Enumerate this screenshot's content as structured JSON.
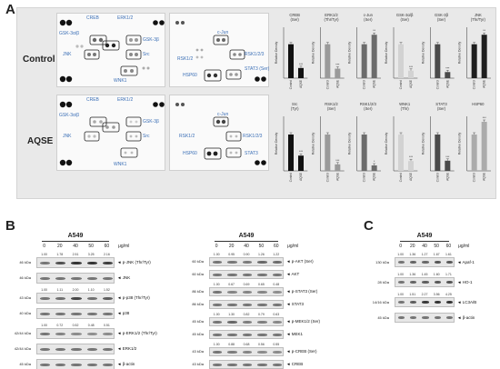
{
  "panel_a": {
    "letter": "A",
    "rows": [
      {
        "label": "Control",
        "left_array": {
          "labels": [
            "CREB",
            "ERK1/2",
            "GSK-3α/β",
            "GSK-3β",
            "JNK",
            "Src",
            "WNK1"
          ]
        },
        "right_array": {
          "labels": [
            "c-Jun",
            "RSK1/2/3",
            "RSK1/2",
            "STAT3 (Ser)",
            "HSP60"
          ]
        }
      },
      {
        "label": "AQSE",
        "left_array": {
          "labels": [
            "CREB",
            "ERK1/2",
            "GSK-3α/β",
            "GSK-3β",
            "JNK",
            "Src",
            "WNK1"
          ]
        },
        "right_array": {
          "labels": [
            "c-Jun",
            "RSK1/2",
            "RSK1/2/3",
            "HSP60",
            "STAT3"
          ]
        }
      }
    ]
  },
  "chart_data": [
    {
      "type": "bar",
      "row": "top",
      "ylabel": "Relative Density",
      "x_labels": [
        "Control",
        "AQSE"
      ],
      "series": [
        {
          "name": "CREB (Ser)",
          "values": [
            1.0,
            0.3
          ],
          "sig": [
            "",
            "***"
          ],
          "colors": [
            "#111111",
            "#111111"
          ]
        },
        {
          "name": "ERK1/2 (Thr/Tyr)",
          "values": [
            1.0,
            0.28
          ],
          "sig": [
            "",
            "***"
          ],
          "colors": [
            "#9a9a9a",
            "#9a9a9a"
          ]
        },
        {
          "name": "c-Jun (Ser)",
          "values": [
            1.0,
            1.28
          ],
          "sig": [
            "",
            "**"
          ],
          "colors": [
            "#6b6b6b",
            "#6b6b6b"
          ]
        },
        {
          "name": "GSK-3α/β (Ser)",
          "values": [
            1.0,
            0.22
          ],
          "sig": [
            "",
            "***"
          ],
          "colors": [
            "#d2d2d2",
            "#d2d2d2"
          ]
        },
        {
          "name": "GSK-3β (Ser)",
          "values": [
            1.0,
            0.18
          ],
          "sig": [
            "",
            "***"
          ],
          "colors": [
            "#4a4a4a",
            "#4a4a4a"
          ]
        },
        {
          "name": "JNK (Thr/Tyr)",
          "values": [
            1.0,
            1.28
          ],
          "sig": [
            "",
            "**"
          ],
          "colors": [
            "#1e1e1e",
            "#1e1e1e"
          ]
        }
      ]
    },
    {
      "type": "bar",
      "row": "bottom",
      "ylabel": "Relative Density",
      "x_labels": [
        "Control",
        "AQSE"
      ],
      "series": [
        {
          "name": "Src (Tyr)",
          "values": [
            1.0,
            0.42
          ],
          "sig": [
            "",
            "***"
          ],
          "colors": [
            "#111111",
            "#111111"
          ]
        },
        {
          "name": "RSK1/2 (Ser)",
          "values": [
            1.0,
            0.18
          ],
          "sig": [
            "",
            "***"
          ],
          "colors": [
            "#9a9a9a",
            "#9a9a9a"
          ]
        },
        {
          "name": "RSK1/2/3 (Ser)",
          "values": [
            1.0,
            0.15
          ],
          "sig": [
            "",
            "*"
          ],
          "colors": [
            "#6b6b6b",
            "#6b6b6b"
          ]
        },
        {
          "name": "WNK1 (Thr)",
          "values": [
            1.0,
            0.27
          ],
          "sig": [
            "",
            "***"
          ],
          "colors": [
            "#d2d2d2",
            "#d2d2d2"
          ]
        },
        {
          "name": "STAT3 (Ser)",
          "values": [
            1.0,
            0.28
          ],
          "sig": [
            "",
            "***"
          ],
          "colors": [
            "#4a4a4a",
            "#4a4a4a"
          ]
        },
        {
          "name": "HSP60",
          "values": [
            1.0,
            1.35
          ],
          "sig": [
            "",
            "***"
          ],
          "colors": [
            "#ababab",
            "#ababab"
          ]
        }
      ]
    }
  ],
  "panel_b": {
    "letter": "B",
    "left": {
      "title": "A549",
      "unit": "μg/ml",
      "doses": [
        "0",
        "20",
        "40",
        "50",
        "60"
      ],
      "blots": [
        {
          "kda": "46 kDa",
          "name": "p-JNK (Thr/Tyr)",
          "quant": [
            "1.00",
            "1.78",
            "2.51",
            "3.25",
            "2.16"
          ]
        },
        {
          "kda": "46 kDa",
          "name": "JNK",
          "quant": null
        },
        {
          "kda": "43 kDa",
          "name": "p-p38 (Thr/Tyr)",
          "quant": [
            "1.00",
            "1.11",
            "2.00",
            "1.10",
            "1.52"
          ]
        },
        {
          "kda": "40 kDa",
          "name": "p38",
          "quant": null
        },
        {
          "kda": "42/44 kDa",
          "name": "p-ERK1/2 (Thr/Tyr)",
          "quant": [
            "1.00",
            "0.72",
            "0.52",
            "0.48",
            "0.51"
          ]
        },
        {
          "kda": "42/44 kDa",
          "name": "ERK1/2",
          "quant": null
        },
        {
          "kda": "45 kDa",
          "name": "β-actin",
          "quant": null
        }
      ]
    },
    "right": {
      "title": "A549",
      "unit": "μg/ml",
      "doses": [
        "0",
        "20",
        "40",
        "50",
        "60"
      ],
      "blots": [
        {
          "kda": "60 kDa",
          "name": "p-AKT (Ser)",
          "quant": [
            "1.00",
            "0.95",
            "0.90",
            "1.26",
            "1.22"
          ]
        },
        {
          "kda": "60 kDa",
          "name": "AKT",
          "quant": null
        },
        {
          "kda": "86 kDa",
          "name": "p-STAT3 (Ser)",
          "quant": [
            "1.00",
            "0.67",
            "0.69",
            "0.65",
            "0.48"
          ]
        },
        {
          "kda": "86 kDa",
          "name": "STAT3",
          "quant": null
        },
        {
          "kda": "45 kDa",
          "name": "p-MEK1/2 (Ser)",
          "quant": [
            "1.00",
            "1.30",
            "0.82",
            "0.79",
            "0.63"
          ]
        },
        {
          "kda": "45 kDa",
          "name": "MEK1",
          "quant": null
        },
        {
          "kda": "43 kDa",
          "name": "p-CREB (Ser)",
          "quant": [
            "1.00",
            "0.88",
            "0.68",
            "0.56",
            "0.55"
          ]
        },
        {
          "kda": "43 kDa",
          "name": "CREB",
          "quant": null
        },
        {
          "kda": "45 kDa",
          "name": "β-actin",
          "quant": null
        }
      ]
    }
  },
  "panel_c": {
    "letter": "C",
    "title": "A549",
    "unit": "μg/ml",
    "doses": [
      "0",
      "20",
      "40",
      "50",
      "60"
    ],
    "blots": [
      {
        "kda": "130 kDa",
        "name": "Apaf-1",
        "quant": [
          "1.00",
          "1.36",
          "1.27",
          "1.67",
          "1.61"
        ]
      },
      {
        "kda": "28 kDa",
        "name": "HO-1",
        "quant": [
          "1.00",
          "1.36",
          "1.45",
          "1.60",
          "1.71"
        ]
      },
      {
        "kda": "14/16 kDa",
        "name": "LC3A/B",
        "quant": [
          "1.00",
          "1.51",
          "2.27",
          "3.56",
          "4.25"
        ]
      },
      {
        "kda": "45 kDa",
        "name": "β-actin",
        "quant": null
      }
    ]
  }
}
